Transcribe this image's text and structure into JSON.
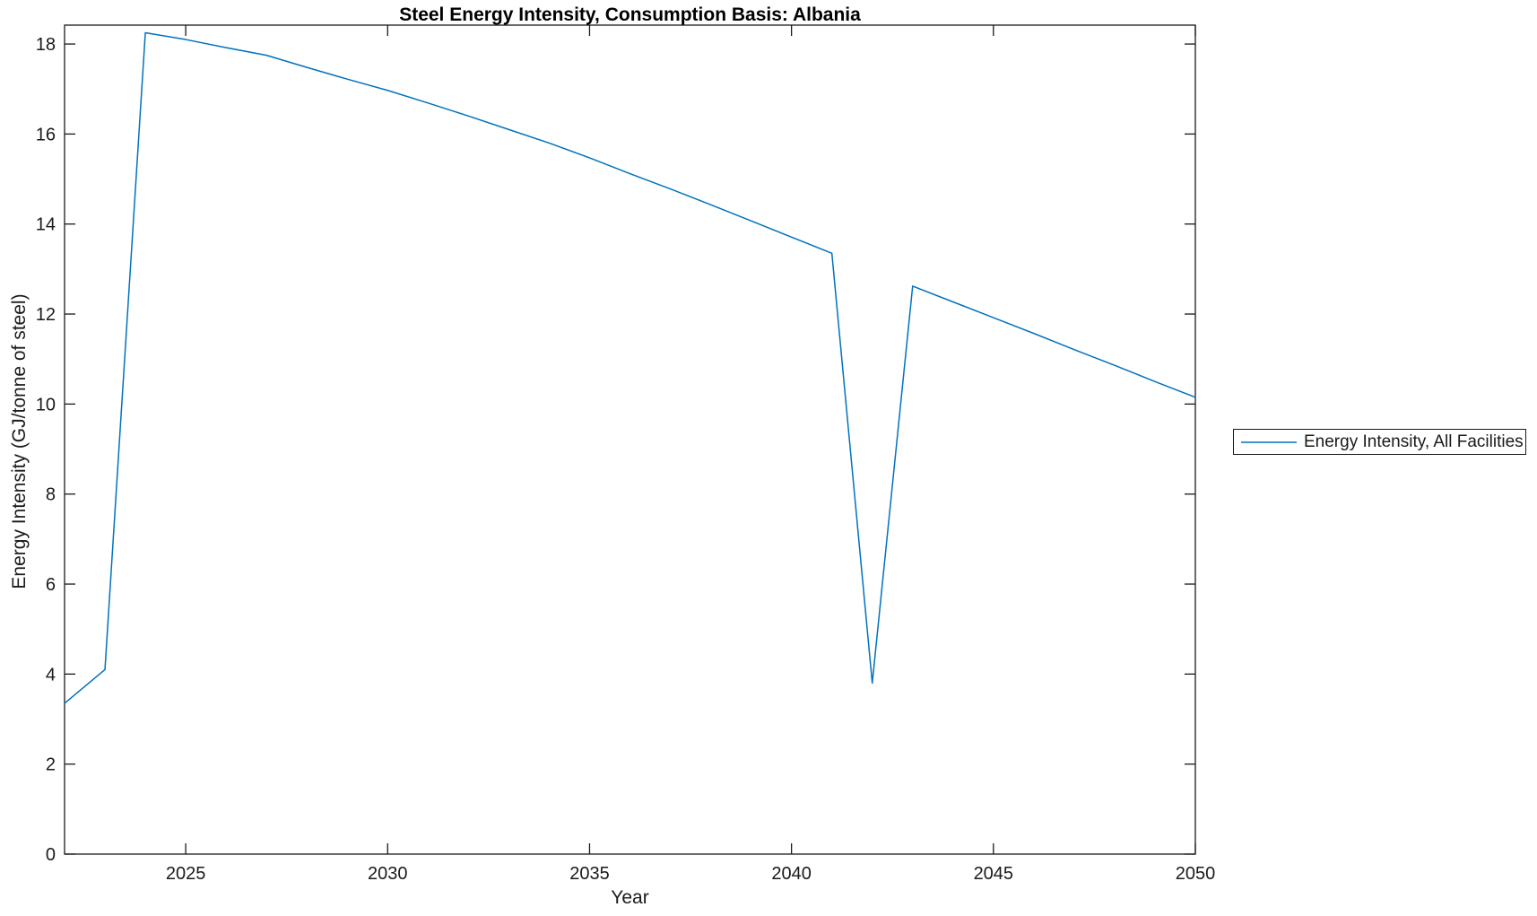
{
  "title": "Steel Energy Intensity, Consumption Basis: Albania",
  "axes": {
    "xlabel": "Year",
    "ylabel": "Energy Intensity (GJ/tonne of steel)"
  },
  "legend": {
    "entries": [
      {
        "label": "Energy Intensity, All Facilities",
        "color": "#0072BD"
      }
    ],
    "position": "outside-right"
  },
  "colors": {
    "line": "#0072BD",
    "axis": "#1a1a1a",
    "background": "#ffffff",
    "text": "#1a1a1a"
  },
  "chart_data": {
    "type": "line",
    "title": "Steel Energy Intensity, Consumption Basis: Albania",
    "xlabel": "Year",
    "ylabel": "Energy Intensity (GJ/tonne of steel)",
    "xlim": [
      2022,
      2050
    ],
    "ylim": [
      0,
      18.42
    ],
    "xticks": [
      2025,
      2030,
      2035,
      2040,
      2045,
      2050
    ],
    "yticks": [
      0,
      2,
      4,
      6,
      8,
      10,
      12,
      14,
      16,
      18
    ],
    "grid": false,
    "box": true,
    "legend_position": "outside-right",
    "series": [
      {
        "name": "Energy Intensity, All Facilities",
        "color": "#0072BD",
        "x": [
          2022,
          2023,
          2024,
          2025,
          2026,
          2027,
          2028,
          2029,
          2030,
          2031,
          2032,
          2033,
          2034,
          2035,
          2036,
          2037,
          2038,
          2039,
          2040,
          2041,
          2042,
          2043,
          2044,
          2045,
          2046,
          2047,
          2048,
          2049,
          2050
        ],
        "y": [
          3.35,
          4.1,
          18.25,
          18.1,
          17.92,
          17.75,
          17.48,
          17.22,
          16.97,
          16.69,
          16.4,
          16.1,
          15.8,
          15.47,
          15.12,
          14.78,
          14.43,
          14.07,
          13.71,
          13.35,
          3.8,
          12.62,
          12.27,
          11.92,
          11.57,
          11.21,
          10.86,
          10.5,
          10.15
        ]
      }
    ]
  }
}
